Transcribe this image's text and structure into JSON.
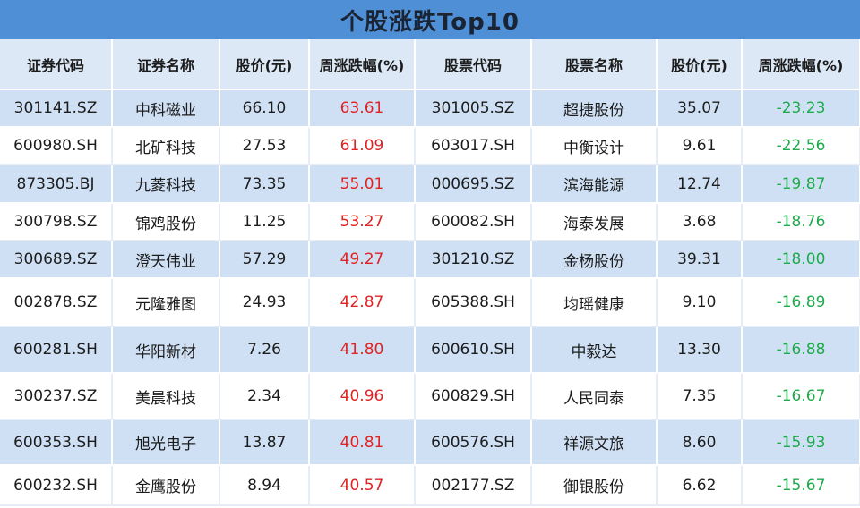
{
  "title": "个股涨跌Top10",
  "headers": [
    "证券代码",
    "证券名称",
    "股价(元)",
    "周涨跌幅(%)",
    "股票代码",
    "股票名称",
    "股价(元)",
    "周涨跌幅(%)"
  ],
  "rows": [
    {
      "gain_code": "301141.SZ",
      "gain_name": "中科磁业",
      "gain_price": "66.10",
      "gain_pct": "63.61",
      "loss_code": "301005.SZ",
      "loss_name": "超捷股份",
      "loss_price": "35.07",
      "loss_pct": "-23.23"
    },
    {
      "gain_code": "600980.SH",
      "gain_name": "北矿科技",
      "gain_price": "27.53",
      "gain_pct": "61.09",
      "loss_code": "603017.SH",
      "loss_name": "中衡设计",
      "loss_price": "9.61",
      "loss_pct": "-22.56"
    },
    {
      "gain_code": "873305.BJ",
      "gain_name": "九菱科技",
      "gain_price": "73.35",
      "gain_pct": "55.01",
      "loss_code": "000695.SZ",
      "loss_name": "滨海能源",
      "loss_price": "12.74",
      "loss_pct": "-19.87"
    },
    {
      "gain_code": "300798.SZ",
      "gain_name": "锦鸡股份",
      "gain_price": "11.25",
      "gain_pct": "53.27",
      "loss_code": "600082.SH",
      "loss_name": "海泰发展",
      "loss_price": "3.68",
      "loss_pct": "-18.76"
    },
    {
      "gain_code": "300689.SZ",
      "gain_name": "澄天伟业",
      "gain_price": "57.29",
      "gain_pct": "49.27",
      "loss_code": "301210.SZ",
      "loss_name": "金杨股份",
      "loss_price": "39.31",
      "loss_pct": "-18.00"
    },
    {
      "gain_code": "002878.SZ",
      "gain_name": "元隆雅图",
      "gain_price": "24.93",
      "gain_pct": "42.87",
      "loss_code": "605388.SH",
      "loss_name": "均瑶健康",
      "loss_price": "9.10",
      "loss_pct": "-16.89"
    },
    {
      "gain_code": "600281.SH",
      "gain_name": "华阳新材",
      "gain_price": "7.26",
      "gain_pct": "41.80",
      "loss_code": "600610.SH",
      "loss_name": "中毅达",
      "loss_price": "13.30",
      "loss_pct": "-16.88"
    },
    {
      "gain_code": "300237.SZ",
      "gain_name": "美晨科技",
      "gain_price": "2.34",
      "gain_pct": "40.96",
      "loss_code": "600829.SH",
      "loss_name": "人民同泰",
      "loss_price": "7.35",
      "loss_pct": "-16.67"
    },
    {
      "gain_code": "600353.SH",
      "gain_name": "旭光电子",
      "gain_price": "13.87",
      "gain_pct": "40.81",
      "loss_code": "600576.SH",
      "loss_name": "祥源文旅",
      "loss_price": "8.60",
      "loss_pct": "-15.93"
    },
    {
      "gain_code": "600232.SH",
      "gain_name": "金鹰股份",
      "gain_price": "8.94",
      "gain_pct": "40.57",
      "loss_code": "002177.SZ",
      "loss_name": "御银股份",
      "loss_price": "6.62",
      "loss_pct": "-15.67"
    }
  ],
  "colors": {
    "title_bg": "#4f8fd6",
    "up": "#e02222",
    "down": "#1eaa4a",
    "stripe": "#cfe0f5"
  }
}
